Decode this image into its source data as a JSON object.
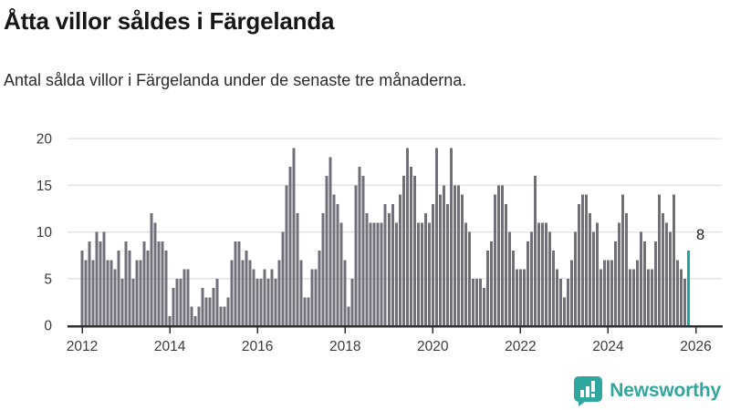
{
  "header": {
    "title": "Åtta villor såldes i Färgelanda",
    "subtitle": "Antal sålda villor i Färgelanda under de senaste tre månaderna."
  },
  "chart_data": {
    "type": "bar",
    "title": "Åtta villor såldes i Färgelanda",
    "subtitle": "Antal sålda villor i Färgelanda under de senaste tre månaderna.",
    "x_unit": "month",
    "start_year": 2012,
    "values": [
      8,
      7,
      9,
      7,
      10,
      9,
      10,
      7,
      7,
      6,
      8,
      5,
      9,
      8,
      5,
      7,
      7,
      9,
      8,
      12,
      11,
      9,
      9,
      8,
      1,
      4,
      5,
      5,
      6,
      6,
      2,
      1,
      2,
      4,
      3,
      3,
      4,
      5,
      2,
      2,
      3,
      7,
      9,
      9,
      7,
      8,
      7,
      6,
      5,
      5,
      6,
      5,
      6,
      5,
      7,
      10,
      15,
      17,
      19,
      12,
      7,
      3,
      3,
      6,
      6,
      8,
      12,
      16,
      18,
      14,
      13,
      11,
      7,
      2,
      5,
      15,
      17,
      16,
      12,
      11,
      11,
      11,
      11,
      13,
      12,
      13,
      11,
      14,
      16,
      19,
      17,
      16,
      11,
      11,
      12,
      11,
      13,
      19,
      14,
      15,
      13,
      19,
      15,
      15,
      14,
      11,
      10,
      5,
      5,
      5,
      4,
      8,
      9,
      14,
      15,
      15,
      13,
      10,
      8,
      6,
      6,
      6,
      9,
      10,
      16,
      11,
      11,
      11,
      10,
      8,
      6,
      5,
      3,
      5,
      7,
      10,
      13,
      14,
      14,
      12,
      10,
      11,
      6,
      7,
      7,
      7,
      9,
      11,
      14,
      12,
      6,
      6,
      7,
      10,
      9,
      6,
      6,
      9,
      14,
      12,
      11,
      10,
      14,
      7,
      6,
      5,
      8
    ],
    "highlight": {
      "last_bar": true,
      "value": 8,
      "label": "8",
      "color": "#1ba8a2"
    },
    "bar_color": "#70707a",
    "ylim": [
      0,
      20
    ],
    "yticks": [
      0,
      5,
      10,
      15,
      20
    ],
    "xticks": [
      2012,
      2014,
      2016,
      2018,
      2020,
      2022,
      2024,
      2026
    ],
    "grid": true,
    "legend": false,
    "axis_color": "#2f2f2f",
    "grid_color": "#e3e3e3",
    "tick_label_color": "#3b3b3b"
  },
  "footer": {
    "brand": "Newsworthy"
  },
  "colors": {
    "accent": "#1ba8a2",
    "logo": "#2fa79e",
    "bar": "#70707a",
    "title_text": "#161616"
  }
}
